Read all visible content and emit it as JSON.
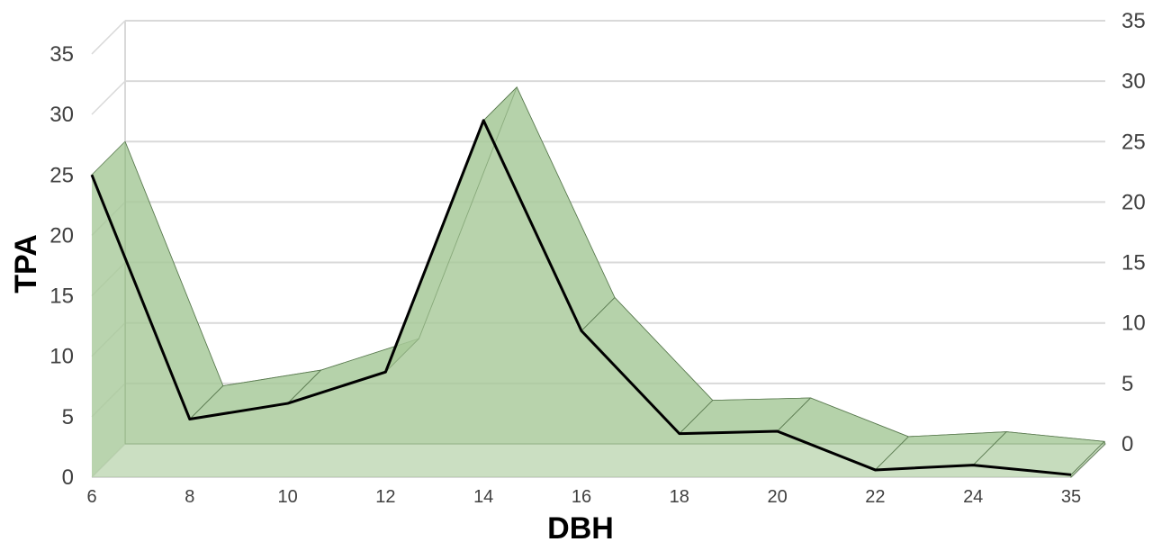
{
  "chart_data": {
    "type": "area",
    "title": "",
    "xlabel": "DBH",
    "ylabel": "TPA",
    "categories": [
      "6",
      "8",
      "10",
      "12",
      "14",
      "16",
      "18",
      "20",
      "22",
      "24",
      "35"
    ],
    "series": [
      {
        "values": [
          25,
          4.8,
          6.1,
          8.7,
          29.5,
          12.1,
          3.6,
          3.8,
          0.6,
          1,
          0.2
        ]
      }
    ],
    "ylim": [
      0,
      35
    ],
    "yticks": [
      0,
      5,
      10,
      15,
      20,
      25,
      30,
      35
    ],
    "grid": true,
    "style": "3d",
    "colors": {
      "fill": "#a8c99a",
      "line": "#000000",
      "grid": "#d9d9d9",
      "text": "#404040"
    }
  }
}
